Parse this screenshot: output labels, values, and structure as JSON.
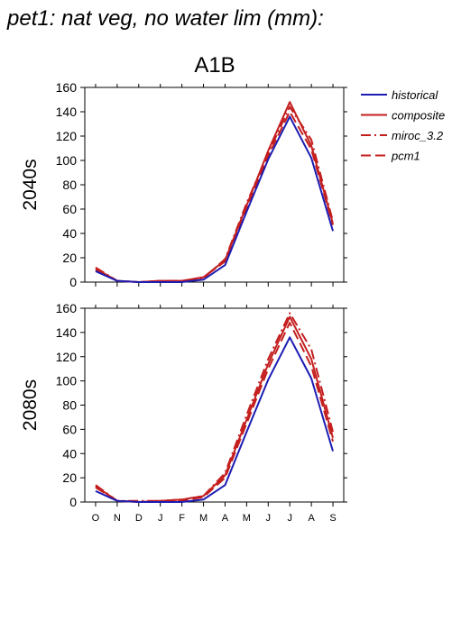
{
  "figure": {
    "title": "pet1: nat veg, no water lim (mm):",
    "scenario": "A1B"
  },
  "legend": [
    {
      "name": "historical",
      "color": "#1c1cb3",
      "dash": "solid"
    },
    {
      "name": "composite",
      "color": "#c41e1e",
      "dash": "solid"
    },
    {
      "name": "miroc_3.2",
      "color": "#c41e1e",
      "dash": "dashdot"
    },
    {
      "name": "pcm1",
      "color": "#c41e1e",
      "dash": "dashed"
    }
  ],
  "chart_data": [
    {
      "type": "line",
      "ylabel": "2040s",
      "categories": [
        "O",
        "N",
        "D",
        "J",
        "F",
        "M",
        "A",
        "M",
        "J",
        "J",
        "A",
        "S"
      ],
      "ylim": [
        0,
        160
      ],
      "yticks": [
        0,
        20,
        40,
        60,
        80,
        100,
        120,
        140,
        160
      ],
      "series": [
        {
          "name": "historical",
          "values": [
            9,
            1,
            0,
            0,
            0,
            2,
            14,
            58,
            101,
            136,
            102,
            42
          ]
        },
        {
          "name": "composite",
          "values": [
            11,
            1,
            0,
            1,
            1,
            4,
            18,
            63,
            108,
            148,
            112,
            48
          ]
        },
        {
          "name": "miroc_3.2",
          "values": [
            12,
            1,
            0,
            1,
            1,
            3,
            19,
            65,
            106,
            144,
            117,
            50
          ]
        },
        {
          "name": "pcm1",
          "values": [
            10,
            1,
            0,
            1,
            1,
            4,
            17,
            61,
            104,
            140,
            109,
            47
          ]
        }
      ]
    },
    {
      "type": "line",
      "ylabel": "2080s",
      "categories": [
        "O",
        "N",
        "D",
        "J",
        "F",
        "M",
        "A",
        "M",
        "J",
        "J",
        "A",
        "S"
      ],
      "ylim": [
        0,
        160
      ],
      "yticks": [
        0,
        20,
        40,
        60,
        80,
        100,
        120,
        140,
        160
      ],
      "series": [
        {
          "name": "historical",
          "values": [
            9,
            1,
            0,
            0,
            0,
            2,
            14,
            58,
            101,
            136,
            102,
            42
          ]
        },
        {
          "name": "composite",
          "values": [
            13,
            1,
            0,
            1,
            2,
            5,
            22,
            68,
            114,
            153,
            118,
            53
          ]
        },
        {
          "name": "miroc_3.2",
          "values": [
            14,
            1,
            1,
            1,
            2,
            5,
            24,
            72,
            118,
            156,
            126,
            58
          ]
        },
        {
          "name": "pcm1",
          "values": [
            12,
            1,
            0,
            1,
            1,
            4,
            20,
            65,
            110,
            148,
            112,
            50
          ]
        }
      ]
    }
  ]
}
